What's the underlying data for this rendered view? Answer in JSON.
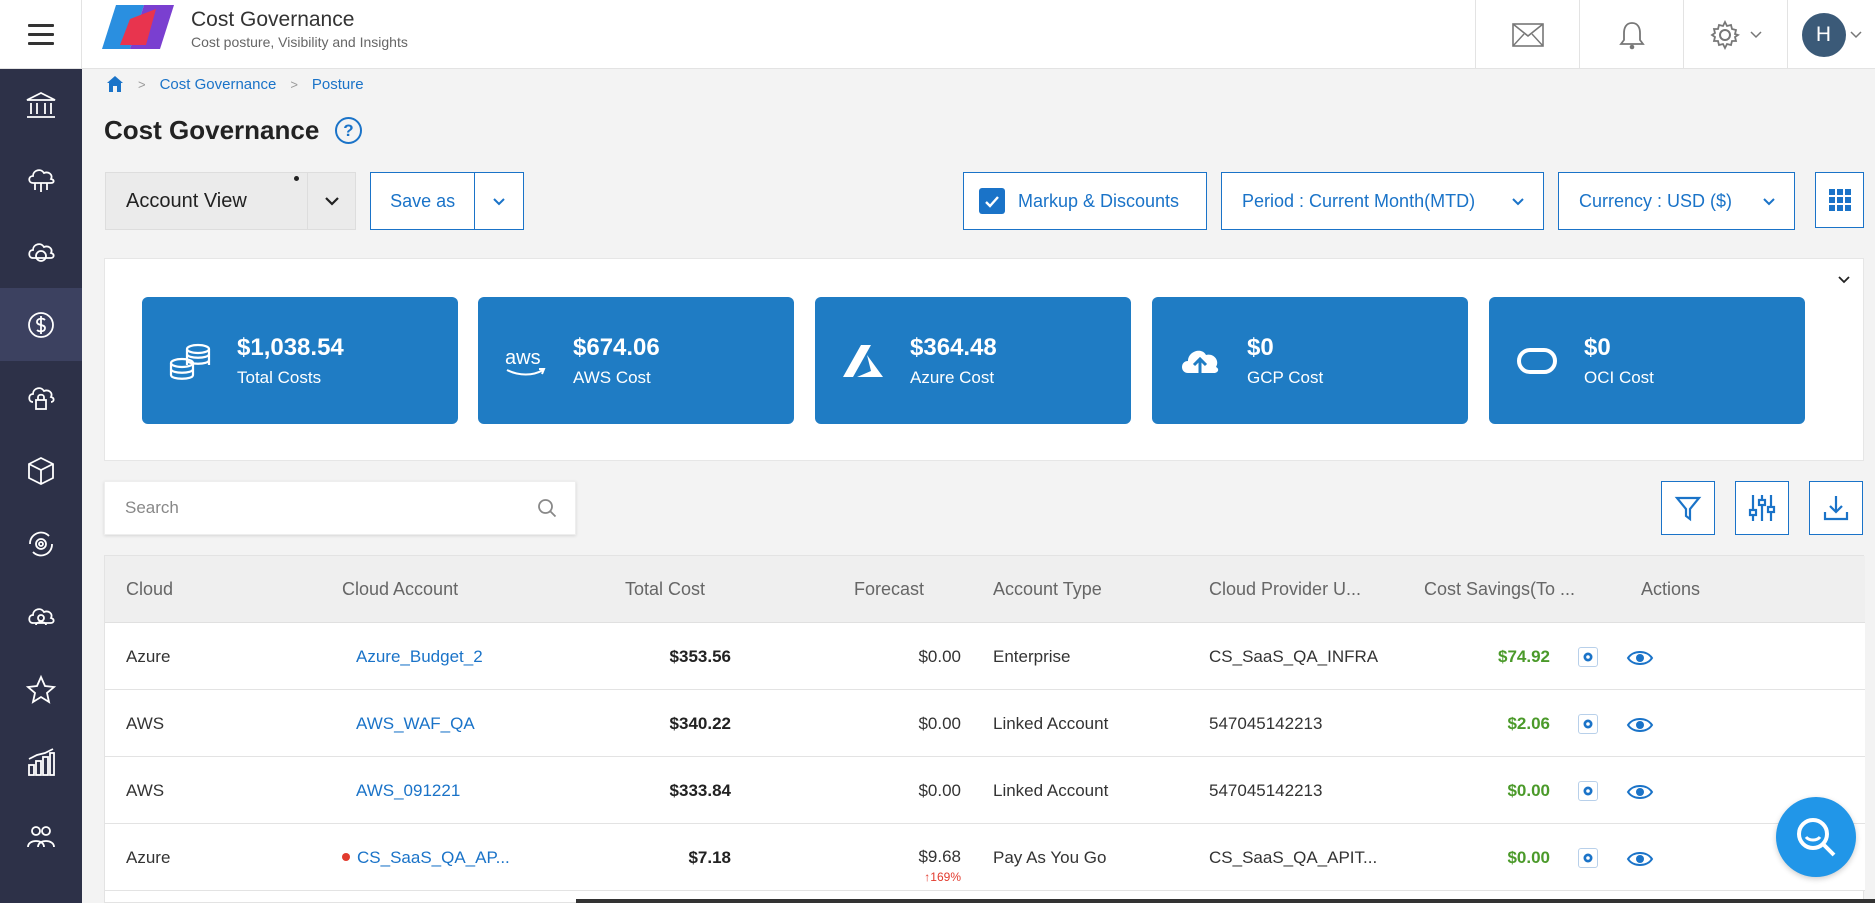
{
  "header": {
    "app_title": "Cost Governance",
    "app_subtitle": "Cost posture, Visibility and Insights",
    "avatar_initial": "H"
  },
  "breadcrumb": [
    "Cost Governance",
    "Posture"
  ],
  "page": {
    "title": "Cost Governance"
  },
  "toolbar": {
    "view_label": "Account View",
    "save_as_label": "Save as",
    "markup_label": "Markup & Discounts",
    "markup_checked": true,
    "period_label": "Period : Current Month(MTD)",
    "currency_label": "Currency : USD ($)"
  },
  "cost_cards": [
    {
      "amount": "$1,038.54",
      "label": "Total Costs",
      "icon": "coins-icon"
    },
    {
      "amount": "$674.06",
      "label": "AWS Cost",
      "icon": "aws-icon"
    },
    {
      "amount": "$364.48",
      "label": "Azure Cost",
      "icon": "azure-icon"
    },
    {
      "amount": "$0",
      "label": "GCP Cost",
      "icon": "gcp-icon"
    },
    {
      "amount": "$0",
      "label": "OCI Cost",
      "icon": "oci-icon"
    }
  ],
  "search": {
    "placeholder": "Search"
  },
  "table": {
    "columns": [
      "Cloud",
      "Cloud Account",
      "Total Cost",
      "Forecast",
      "Account Type",
      "Cloud Provider U...",
      "Cost Savings(To ...",
      "Actions"
    ],
    "rows": [
      {
        "cloud": "Azure",
        "account": "Azure_Budget_2",
        "total": "$353.56",
        "forecast": "$0.00",
        "forecast_delta": "",
        "type": "Enterprise",
        "provider": "CS_SaaS_QA_INFRA",
        "savings": "$74.92",
        "alert": false
      },
      {
        "cloud": "AWS",
        "account": "AWS_WAF_QA",
        "total": "$340.22",
        "forecast": "$0.00",
        "forecast_delta": "",
        "type": "Linked Account",
        "provider": "547045142213",
        "savings": "$2.06",
        "alert": false
      },
      {
        "cloud": "AWS",
        "account": "AWS_091221",
        "total": "$333.84",
        "forecast": "$0.00",
        "forecast_delta": "",
        "type": "Linked Account",
        "provider": "547045142213",
        "savings": "$0.00",
        "alert": false
      },
      {
        "cloud": "Azure",
        "account": "CS_SaaS_QA_AP...",
        "total": "$7.18",
        "forecast": "$9.68",
        "forecast_delta": "↑169%",
        "type": "Pay As You Go",
        "provider": "CS_SaaS_QA_APIT...",
        "savings": "$0.00",
        "alert": true
      }
    ]
  },
  "sidebar": {
    "items": [
      "bank-icon",
      "cloud-network-icon",
      "cloud-cycle-icon",
      "dollar-icon",
      "cloud-lock-icon",
      "cube-icon",
      "gear-cycle-icon",
      "cloud-user-icon",
      "star-icon",
      "bar-chart-icon",
      "users-icon"
    ],
    "active_index": 3
  },
  "colors": {
    "accent": "#1a73c8",
    "card": "#1f7cc4",
    "sidebar": "#2d3148",
    "savings": "#4b9a2a",
    "alert": "#e23b2e"
  }
}
